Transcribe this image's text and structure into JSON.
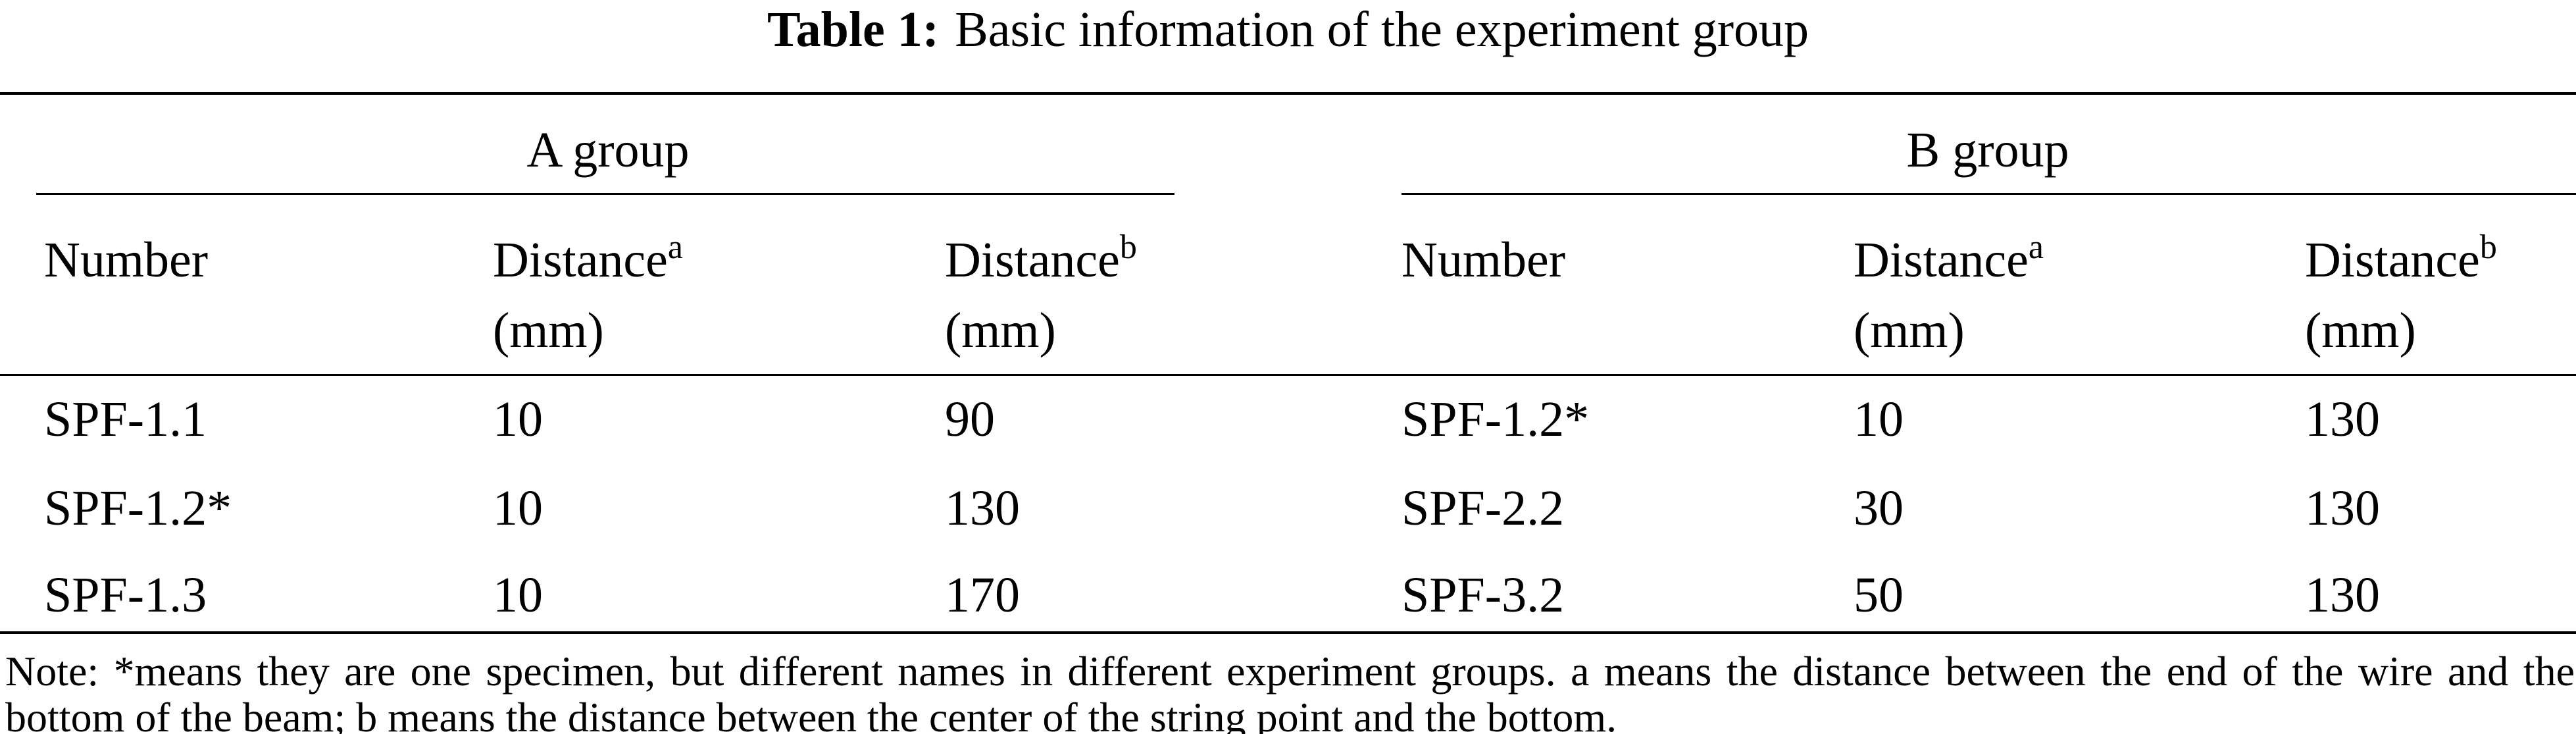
{
  "title": {
    "label": "Table 1:",
    "text": "Basic information of the experiment group"
  },
  "table": {
    "groups": [
      "A group",
      "B group"
    ],
    "columns": [
      {
        "text": "Number"
      },
      {
        "text": "Distance",
        "sup": "a",
        "unit": "(mm)"
      },
      {
        "text": "Distance",
        "sup": "b",
        "unit": "(mm)"
      },
      {
        "text": "Number"
      },
      {
        "text": "Distance",
        "sup": "a",
        "unit": "(mm)"
      },
      {
        "text": "Distance",
        "sup": "b",
        "unit": "(mm)"
      }
    ],
    "rows": [
      [
        "SPF-1.1",
        "10",
        "90",
        "SPF-1.2*",
        "10",
        "130"
      ],
      [
        "SPF-1.2*",
        "10",
        "130",
        "SPF-2.2",
        "30",
        "130"
      ],
      [
        "SPF-1.3",
        "10",
        "170",
        "SPF-3.2",
        "50",
        "130"
      ]
    ]
  },
  "note": "Note: *means they are one specimen, but different names in different experiment groups. a means the distance between the end of the wire and the bottom of the beam; b means the distance between the center of the string point and the bottom."
}
